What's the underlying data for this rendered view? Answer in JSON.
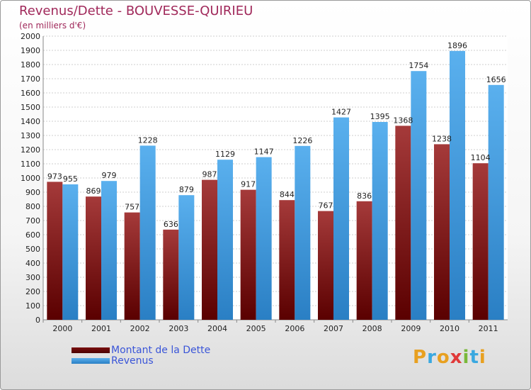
{
  "chart_data": {
    "type": "bar",
    "title": "Revenus/Dette - BOUVESSE-QUIRIEU",
    "subtitle": "(en milliers d'€)",
    "categories": [
      "2000",
      "2001",
      "2002",
      "2003",
      "2004",
      "2005",
      "2006",
      "2007",
      "2008",
      "2009",
      "2010",
      "2011"
    ],
    "series": [
      {
        "name": "Montant de la Dette",
        "values": [
          973,
          869,
          757,
          636,
          987,
          917,
          844,
          767,
          836,
          1368,
          1238,
          1104
        ],
        "color": "#8b1a1a"
      },
      {
        "name": "Revenus",
        "values": [
          955,
          979,
          1228,
          879,
          1129,
          1147,
          1226,
          1427,
          1395,
          1754,
          1896,
          1656
        ],
        "color": "#4aa3e8"
      }
    ],
    "ylim": [
      0,
      2000
    ],
    "ytick_step": 100,
    "grid": true,
    "legend_position": "bottom-left"
  },
  "legend": {
    "dette_label": "Montant de la Dette",
    "revenus_label": "Revenus"
  },
  "logo": {
    "text": "Proxiti"
  }
}
